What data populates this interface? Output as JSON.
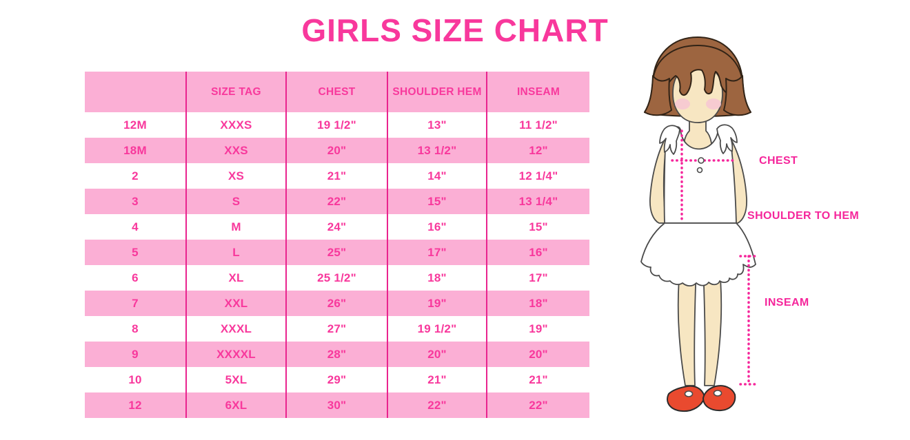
{
  "title": "GIRLS SIZE CHART",
  "colors": {
    "accent_pink": "#F8389C",
    "row_band_pink": "#FBAFD5",
    "column_separator_pink": "#E9238E",
    "measurement_label_pink": "#F5269B",
    "hair_brown": "#9D6540",
    "skin_tone": "#F7E6C2",
    "blush_pink": "#F7C6D3",
    "shoe_red": "#E94A2F"
  },
  "chart_data": {
    "type": "table",
    "title": "GIRLS SIZE CHART",
    "columns": [
      "",
      "SIZE TAG",
      "CHEST",
      "SHOULDER HEM",
      "INSEAM"
    ],
    "rows": [
      [
        "12M",
        "XXXS",
        "19 1/2\"",
        "13\"",
        "11 1/2\""
      ],
      [
        "18M",
        "XXS",
        "20\"",
        "13 1/2\"",
        "12\""
      ],
      [
        "2",
        "XS",
        "21\"",
        "14\"",
        "12 1/4\""
      ],
      [
        "3",
        "S",
        "22\"",
        "15\"",
        "13 1/4\""
      ],
      [
        "4",
        "M",
        "24\"",
        "16\"",
        "15\""
      ],
      [
        "5",
        "L",
        "25\"",
        "17\"",
        "16\""
      ],
      [
        "6",
        "XL",
        "25 1/2\"",
        "18\"",
        "17\""
      ],
      [
        "7",
        "XXL",
        "26\"",
        "19\"",
        "18\""
      ],
      [
        "8",
        "XXXL",
        "27\"",
        "19 1/2\"",
        "19\""
      ],
      [
        "9",
        "XXXXL",
        "28\"",
        "20\"",
        "20\""
      ],
      [
        "10",
        "5XL",
        "29\"",
        "21\"",
        "21\""
      ],
      [
        "12",
        "6XL",
        "30\"",
        "22\"",
        "22\""
      ]
    ],
    "row_striping": "header pink, then alternating white/pink starting with white",
    "legend_position": "none",
    "grid": "vertical magenta separators between all 5 columns"
  },
  "diagram": {
    "chest_label": "CHEST",
    "shoulder_to_hem_label": "SHOULDER TO HEM",
    "inseam_label": "INSEAM",
    "figure": "cartoon girl, brown bob hair, white ruffled sleeveless top and skirt, red mary-jane shoes, pink dotted measurement guides"
  }
}
